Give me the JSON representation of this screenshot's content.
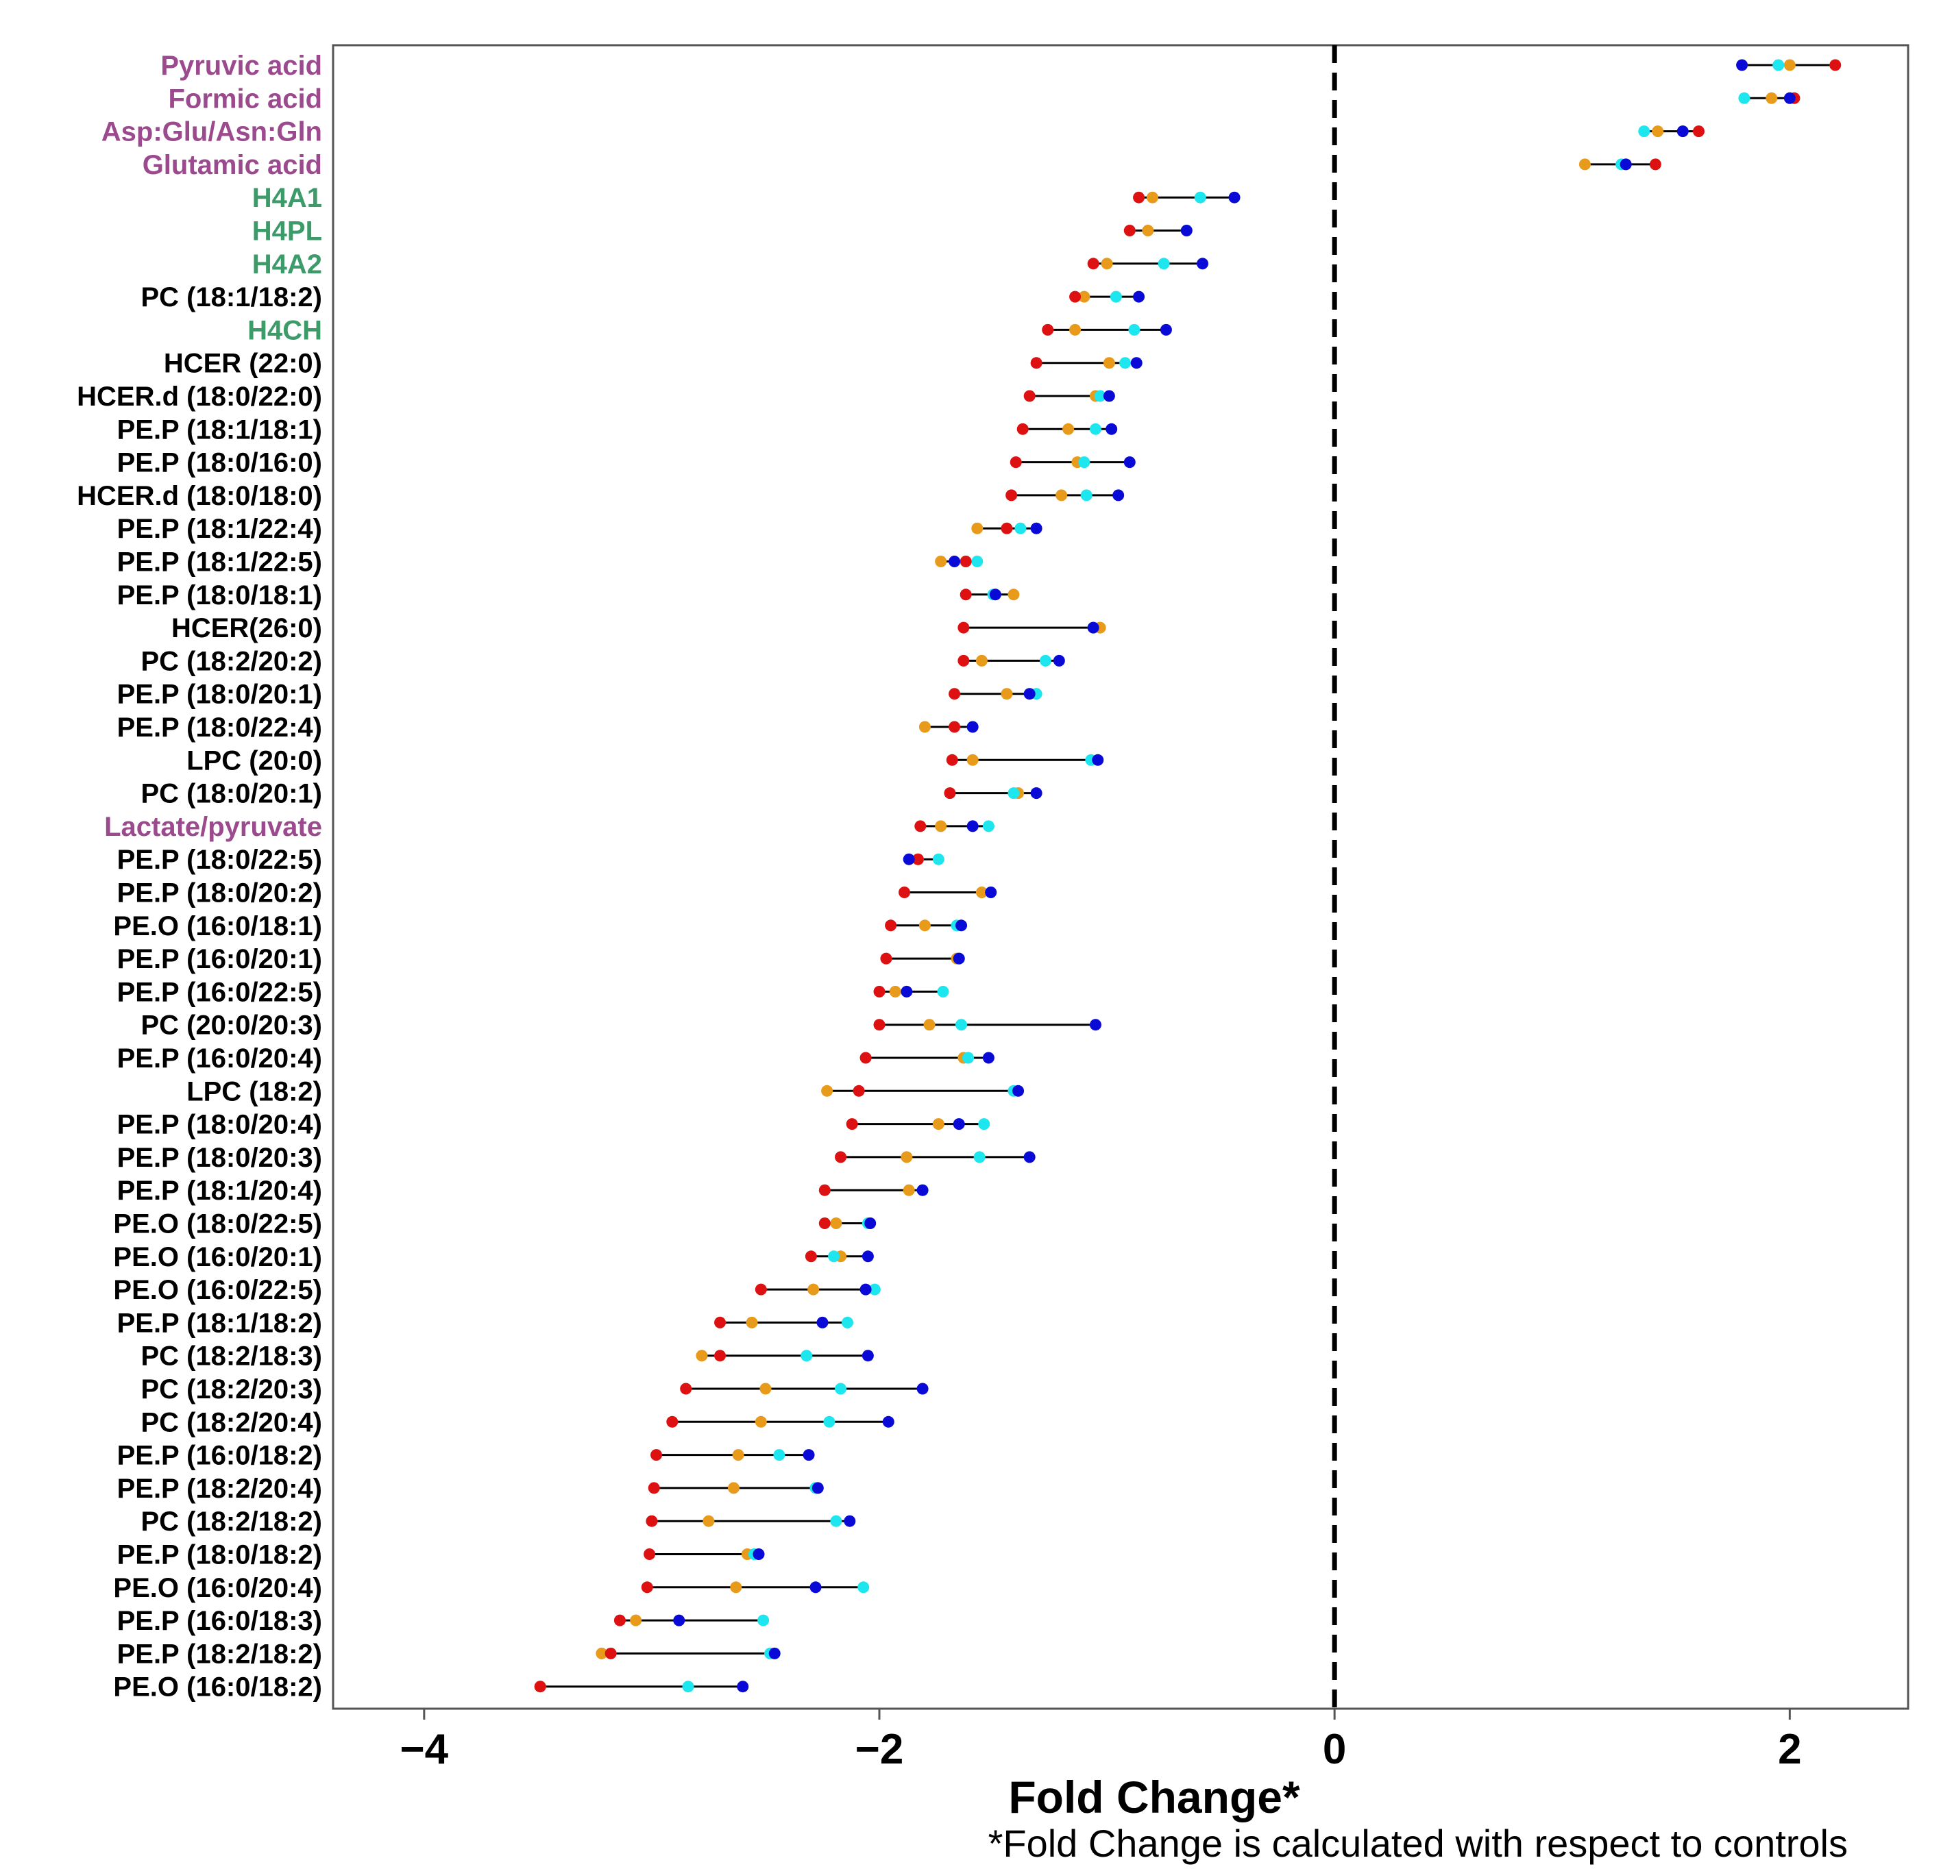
{
  "chart_data": {
    "type": "dumbbell",
    "xlabel": "Fold Change*",
    "note": "*Fold Change is calculated with respect to controls",
    "xlim": [
      -4.4,
      2.52
    ],
    "xticks": [
      -4,
      -2,
      0,
      2
    ],
    "xtick_labels": [
      "−4",
      "−2",
      "0",
      "2"
    ],
    "reference_line": 0,
    "colors": {
      "red": "#dd1111",
      "orange": "#e89a1a",
      "cyan": "#1ee6ee",
      "blue": "#0a0ad6",
      "purple_label": "#9b4a8e",
      "green_label": "#3d9b6a",
      "black_label": "#000000"
    },
    "series_names": [
      "red",
      "orange",
      "cyan",
      "blue"
    ],
    "rows": [
      {
        "label": "Pyruvic acid",
        "group": "purple",
        "red": 2.2,
        "orange": 2.0,
        "cyan": 1.95,
        "blue": 1.79
      },
      {
        "label": "Formic acid",
        "group": "purple",
        "red": 2.02,
        "orange": 1.92,
        "cyan": 1.8,
        "blue": 2.0
      },
      {
        "label": "Asp:Glu/Asn:Gln",
        "group": "purple",
        "red": 1.6,
        "orange": 1.42,
        "cyan": 1.36,
        "blue": 1.53
      },
      {
        "label": "Glutamic acid",
        "group": "purple",
        "red": 1.41,
        "orange": 1.1,
        "cyan": 1.26,
        "blue": 1.28
      },
      {
        "label": "H4A1",
        "group": "green",
        "red": -0.86,
        "orange": -0.8,
        "cyan": -0.59,
        "blue": -0.44
      },
      {
        "label": "H4PL",
        "group": "green",
        "red": -0.9,
        "orange": -0.82,
        "cyan": -0.65,
        "blue": -0.65
      },
      {
        "label": "H4A2",
        "group": "green",
        "red": -1.06,
        "orange": -1.0,
        "cyan": -0.75,
        "blue": -0.58
      },
      {
        "label": "PC (18:1/18:2)",
        "group": "black",
        "red": -1.14,
        "orange": -1.1,
        "cyan": -0.96,
        "blue": -0.86
      },
      {
        "label": "H4CH",
        "group": "green",
        "red": -1.26,
        "orange": -1.14,
        "cyan": -0.88,
        "blue": -0.74
      },
      {
        "label": "HCER (22:0)",
        "group": "black",
        "red": -1.31,
        "orange": -0.99,
        "cyan": -0.92,
        "blue": -0.87
      },
      {
        "label": "HCER.d (18:0/22:0)",
        "group": "black",
        "red": -1.34,
        "orange": -1.05,
        "cyan": -1.03,
        "blue": -0.99
      },
      {
        "label": "PE.P (18:1/18:1)",
        "group": "black",
        "red": -1.37,
        "orange": -1.17,
        "cyan": -1.05,
        "blue": -0.98
      },
      {
        "label": "PE.P (18:0/16:0)",
        "group": "black",
        "red": -1.4,
        "orange": -1.13,
        "cyan": -1.1,
        "blue": -0.9
      },
      {
        "label": "HCER.d (18:0/18:0)",
        "group": "black",
        "red": -1.42,
        "orange": -1.2,
        "cyan": -1.09,
        "blue": -0.95
      },
      {
        "label": "PE.P (18:1/22:4)",
        "group": "black",
        "red": -1.44,
        "orange": -1.57,
        "cyan": -1.38,
        "blue": -1.31
      },
      {
        "label": "PE.P (18:1/22:5)",
        "group": "black",
        "red": -1.62,
        "orange": -1.73,
        "cyan": -1.57,
        "blue": -1.67
      },
      {
        "label": "PE.P (18:0/18:1)",
        "group": "black",
        "red": -1.62,
        "orange": -1.41,
        "cyan": -1.5,
        "blue": -1.49
      },
      {
        "label": "HCER(26:0)",
        "group": "black",
        "red": -1.63,
        "orange": -1.03,
        "cyan": -1.06,
        "blue": -1.06
      },
      {
        "label": "PC (18:2/20:2)",
        "group": "black",
        "red": -1.63,
        "orange": -1.55,
        "cyan": -1.27,
        "blue": -1.21
      },
      {
        "label": "PE.P (18:0/20:1)",
        "group": "black",
        "red": -1.67,
        "orange": -1.44,
        "cyan": -1.31,
        "blue": -1.34
      },
      {
        "label": "PE.P (18:0/22:4)",
        "group": "black",
        "red": -1.67,
        "orange": -1.8,
        "cyan": -1.59,
        "blue": -1.59
      },
      {
        "label": "LPC (20:0)",
        "group": "black",
        "red": -1.68,
        "orange": -1.59,
        "cyan": -1.07,
        "blue": -1.04
      },
      {
        "label": "PC (18:0/20:1)",
        "group": "black",
        "red": -1.69,
        "orange": -1.39,
        "cyan": -1.41,
        "blue": -1.31
      },
      {
        "label": "Lactate/pyruvate",
        "group": "purple",
        "red": -1.82,
        "orange": -1.73,
        "cyan": -1.52,
        "blue": -1.59
      },
      {
        "label": "PE.P (18:0/22:5)",
        "group": "black",
        "red": -1.83,
        "orange": -1.83,
        "cyan": -1.74,
        "blue": -1.87
      },
      {
        "label": "PE.P (18:0/20:2)",
        "group": "black",
        "red": -1.89,
        "orange": -1.55,
        "cyan": -1.51,
        "blue": -1.51
      },
      {
        "label": "PE.O (16:0/18:1)",
        "group": "black",
        "red": -1.95,
        "orange": -1.8,
        "cyan": -1.66,
        "blue": -1.64
      },
      {
        "label": "PE.P (16:0/20:1)",
        "group": "black",
        "red": -1.97,
        "orange": -1.66,
        "cyan": -1.65,
        "blue": -1.65
      },
      {
        "label": "PE.P (16:0/22:5)",
        "group": "black",
        "red": -2.0,
        "orange": -1.93,
        "cyan": -1.72,
        "blue": -1.88
      },
      {
        "label": "PC (20:0/20:3)",
        "group": "black",
        "red": -2.0,
        "orange": -1.78,
        "cyan": -1.64,
        "blue": -1.05
      },
      {
        "label": "PE.P (16:0/20:4)",
        "group": "black",
        "red": -2.06,
        "orange": -1.63,
        "cyan": -1.61,
        "blue": -1.52
      },
      {
        "label": "LPC (18:2)",
        "group": "black",
        "red": -2.09,
        "orange": -2.23,
        "cyan": -1.41,
        "blue": -1.39
      },
      {
        "label": "PE.P (18:0/20:4)",
        "group": "black",
        "red": -2.12,
        "orange": -1.74,
        "cyan": -1.54,
        "blue": -1.65
      },
      {
        "label": "PE.P (18:0/20:3)",
        "group": "black",
        "red": -2.17,
        "orange": -1.88,
        "cyan": -1.56,
        "blue": -1.34
      },
      {
        "label": "PE.P (18:1/20:4)",
        "group": "black",
        "red": -2.24,
        "orange": -1.87,
        "cyan": -1.81,
        "blue": -1.81
      },
      {
        "label": "PE.O (18:0/22:5)",
        "group": "black",
        "red": -2.24,
        "orange": -2.19,
        "cyan": -2.05,
        "blue": -2.04
      },
      {
        "label": "PE.O (16:0/20:1)",
        "group": "black",
        "red": -2.3,
        "orange": -2.17,
        "cyan": -2.2,
        "blue": -2.05
      },
      {
        "label": "PE.O (16:0/22:5)",
        "group": "black",
        "red": -2.52,
        "orange": -2.29,
        "cyan": -2.02,
        "blue": -2.06
      },
      {
        "label": "PE.P (18:1/18:2)",
        "group": "black",
        "red": -2.7,
        "orange": -2.56,
        "cyan": -2.14,
        "blue": -2.25
      },
      {
        "label": "PC (18:2/18:3)",
        "group": "black",
        "red": -2.7,
        "orange": -2.78,
        "cyan": -2.32,
        "blue": -2.05
      },
      {
        "label": "PC (18:2/20:3)",
        "group": "black",
        "red": -2.85,
        "orange": -2.5,
        "cyan": -2.17,
        "blue": -1.81
      },
      {
        "label": "PC (18:2/20:4)",
        "group": "black",
        "red": -2.91,
        "orange": -2.52,
        "cyan": -2.22,
        "blue": -1.96
      },
      {
        "label": "PE.P (16:0/18:2)",
        "group": "black",
        "red": -2.98,
        "orange": -2.62,
        "cyan": -2.44,
        "blue": -2.31
      },
      {
        "label": "PE.P (18:2/20:4)",
        "group": "black",
        "red": -2.99,
        "orange": -2.64,
        "cyan": -2.28,
        "blue": -2.27
      },
      {
        "label": "PC (18:2/18:2)",
        "group": "black",
        "red": -3.0,
        "orange": -2.75,
        "cyan": -2.19,
        "blue": -2.13
      },
      {
        "label": "PE.P (18:0/18:2)",
        "group": "black",
        "red": -3.01,
        "orange": -2.58,
        "cyan": -2.55,
        "blue": -2.53
      },
      {
        "label": "PE.O (16:0/20:4)",
        "group": "black",
        "red": -3.02,
        "orange": -2.63,
        "cyan": -2.07,
        "blue": -2.28
      },
      {
        "label": "PE.P (16:0/18:3)",
        "group": "black",
        "red": -3.14,
        "orange": -3.07,
        "cyan": -2.51,
        "blue": -2.88
      },
      {
        "label": "PE.P (18:2/18:2)",
        "group": "black",
        "red": -3.18,
        "orange": -3.22,
        "cyan": -2.48,
        "blue": -2.46
      },
      {
        "label": "PE.O (16:0/18:2)",
        "group": "black",
        "red": -3.49,
        "orange": -3.49,
        "cyan": -2.84,
        "blue": -2.6
      }
    ]
  }
}
